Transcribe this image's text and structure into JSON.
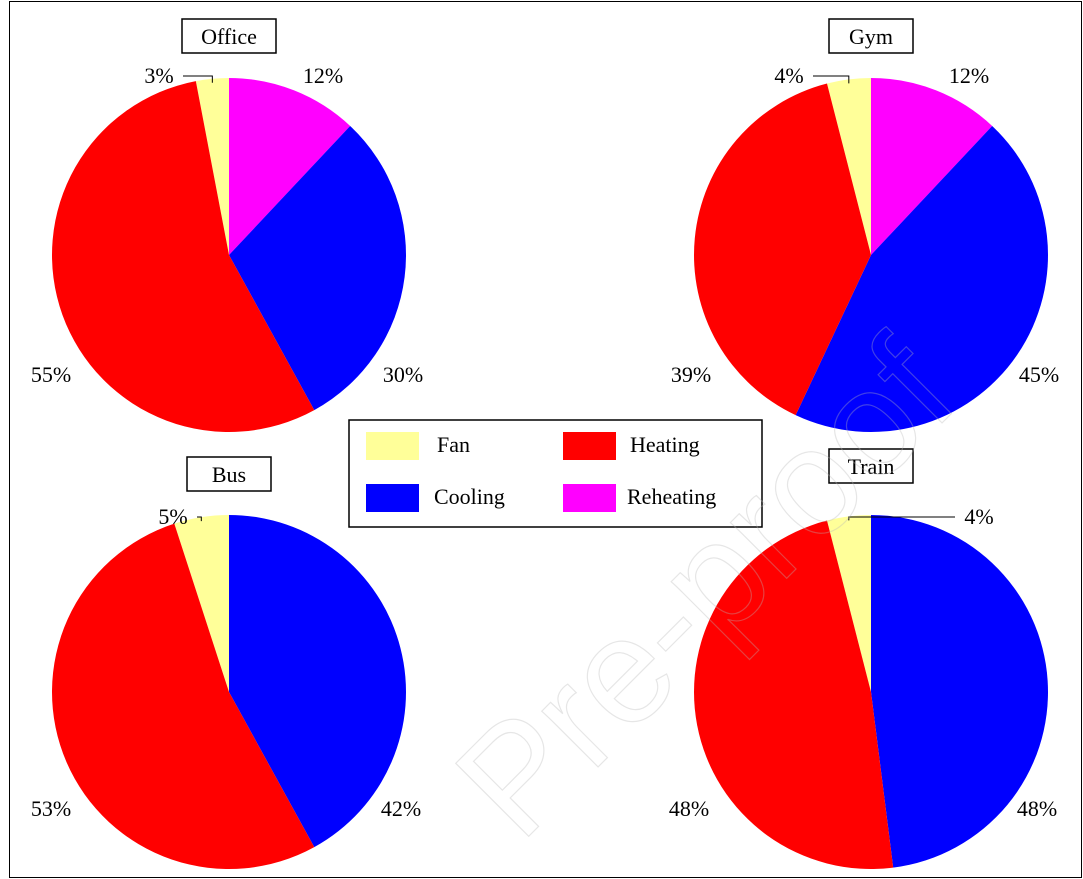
{
  "colors": {
    "Fan": "#ffff99",
    "Heating": "#ff0000",
    "Cooling": "#0000ff",
    "Reheating": "#ff00ff"
  },
  "watermark": "Pre-proof",
  "legend": {
    "items": [
      "Fan",
      "Heating",
      "Cooling",
      "Reheating"
    ]
  },
  "chart_data": [
    {
      "type": "pie",
      "title": "Office",
      "slices": [
        {
          "category": "Fan",
          "value": 3,
          "label": "3%"
        },
        {
          "category": "Heating",
          "value": 55,
          "label": "55%"
        },
        {
          "category": "Cooling",
          "value": 30,
          "label": "30%"
        },
        {
          "category": "Reheating",
          "value": 12,
          "label": "12%"
        }
      ]
    },
    {
      "type": "pie",
      "title": "Gym",
      "slices": [
        {
          "category": "Fan",
          "value": 4,
          "label": "4%"
        },
        {
          "category": "Heating",
          "value": 39,
          "label": "39%"
        },
        {
          "category": "Cooling",
          "value": 45,
          "label": "45%"
        },
        {
          "category": "Reheating",
          "value": 12,
          "label": "12%"
        }
      ]
    },
    {
      "type": "pie",
      "title": "Bus",
      "slices": [
        {
          "category": "Fan",
          "value": 5,
          "label": "5%"
        },
        {
          "category": "Heating",
          "value": 53,
          "label": "53%"
        },
        {
          "category": "Cooling",
          "value": 42,
          "label": "42%"
        }
      ]
    },
    {
      "type": "pie",
      "title": "Train",
      "slices": [
        {
          "category": "Fan",
          "value": 4,
          "label": "4%"
        },
        {
          "category": "Heating",
          "value": 48,
          "label": "48%"
        },
        {
          "category": "Cooling",
          "value": 48,
          "label": "48%"
        }
      ]
    }
  ]
}
